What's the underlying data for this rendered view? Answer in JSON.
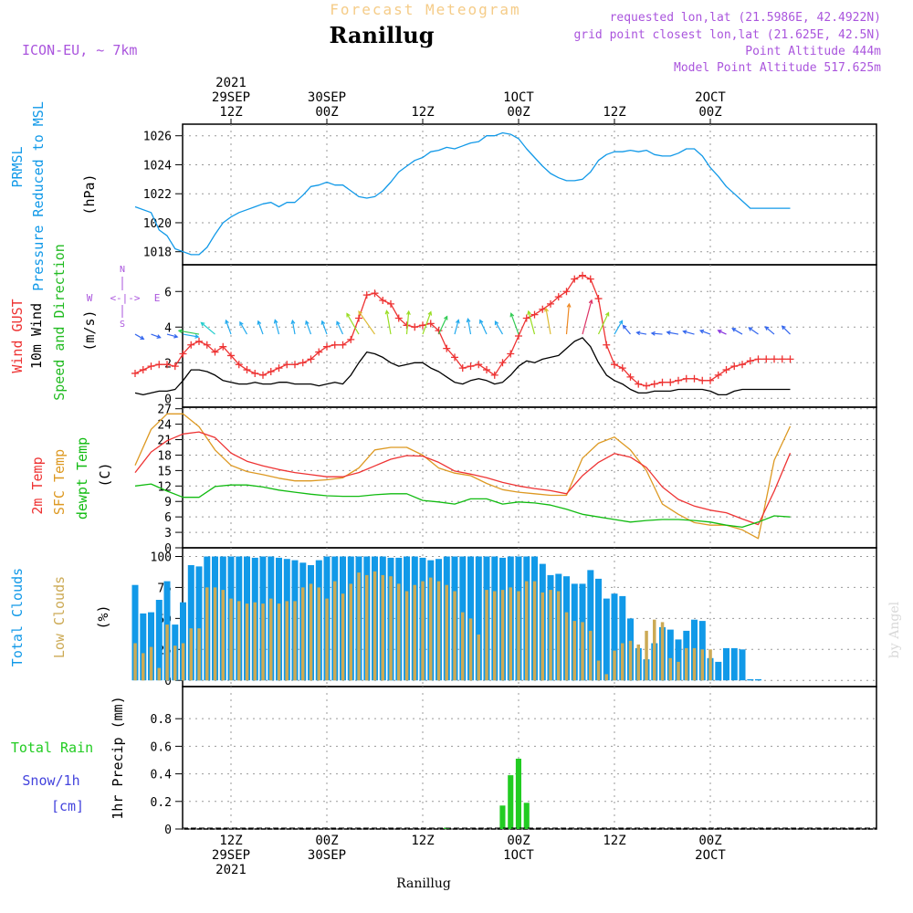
{
  "header": {
    "product": "Forecast Meteogram",
    "location": "Ranillug",
    "model": "ICON-EU, ~ 7km",
    "requested": "requested lon,lat (21.5986E, 42.4922N)",
    "grid_point": "grid point closest lon,lat (21.625E, 42.5N)",
    "point_altitude": "Point Altitude 444m",
    "model_altitude": "Model Point Altitude 517.625m",
    "credit": "by Angel",
    "footer_location": "Ranillug"
  },
  "compass": {
    "n": "N",
    "w": "W",
    "e": "E",
    "s": "S",
    "glyph": "<-|->"
  },
  "colors": {
    "pressure": "#1199e8",
    "gust": "#ee3333",
    "wind": "#000000",
    "direction": "#22bb22",
    "temp2m": "#ee3333",
    "sfc": "#dd9922",
    "dewpt": "#11bb11",
    "total_clouds": "#1199e8",
    "low_clouds": "#ccaa55",
    "rain": "#22cc22",
    "snow": "#4444dd",
    "purple": "#aa55dd"
  },
  "time_axis": {
    "top": [
      {
        "t": 12,
        "lines": [
          "2021",
          "29SEP",
          "12Z"
        ]
      },
      {
        "t": 24,
        "lines": [
          "30SEP",
          "00Z"
        ]
      },
      {
        "t": 36,
        "lines": [
          "12Z"
        ]
      },
      {
        "t": 48,
        "lines": [
          "1OCT",
          "00Z"
        ]
      },
      {
        "t": 60,
        "lines": [
          "12Z"
        ]
      },
      {
        "t": 72,
        "lines": [
          "2OCT",
          "00Z"
        ]
      }
    ],
    "bottom": [
      {
        "t": 12,
        "lines": [
          "12Z",
          "29SEP",
          "2021"
        ]
      },
      {
        "t": 24,
        "lines": [
          "00Z",
          "30SEP"
        ]
      },
      {
        "t": 36,
        "lines": [
          "12Z"
        ]
      },
      {
        "t": 48,
        "lines": [
          "00Z",
          "1OCT"
        ]
      },
      {
        "t": 60,
        "lines": [
          "12Z"
        ]
      },
      {
        "t": 72,
        "lines": [
          "00Z",
          "2OCT"
        ]
      }
    ]
  },
  "chart_data": [
    {
      "type": "line",
      "title": "PRMSL Pressure Reduced to MSL",
      "label_lines": [
        "PRMSL",
        "Pressure Reduced to MSL"
      ],
      "ylabel": "(hPa)",
      "ylim": [
        1017,
        1027
      ],
      "yticks": [
        1018,
        1020,
        1022,
        1024,
        1026
      ],
      "x_unit": "hours from 29SEP 00Z",
      "x": [
        0,
        2,
        3,
        4,
        5,
        6,
        7,
        8,
        9,
        10,
        11,
        12,
        13,
        14,
        15,
        16,
        17,
        18,
        19,
        20,
        21,
        22,
        23,
        24,
        25,
        26,
        27,
        28,
        29,
        30,
        31,
        32,
        33,
        34,
        35,
        36,
        37,
        38,
        39,
        40,
        41,
        42,
        43,
        44,
        45,
        46,
        47,
        48,
        49,
        50,
        51,
        52,
        53,
        54,
        55,
        56,
        57,
        58,
        59,
        60,
        61,
        62,
        63,
        64,
        65,
        66,
        67,
        68,
        69,
        70,
        71,
        72,
        73,
        74,
        75,
        76,
        77,
        78,
        79,
        80,
        81,
        82
      ],
      "series": [
        {
          "name": "PRMSL",
          "values": [
            1021.1,
            1020.7,
            1019.5,
            1019.1,
            1018.2,
            1018.0,
            1017.8,
            1017.8,
            1018.3,
            1019.2,
            1020.0,
            1020.4,
            1020.7,
            1020.9,
            1021.1,
            1021.3,
            1021.4,
            1021.1,
            1021.4,
            1021.4,
            1021.9,
            1022.5,
            1022.6,
            1022.8,
            1022.6,
            1022.6,
            1022.2,
            1021.8,
            1021.7,
            1021.8,
            1022.2,
            1022.8,
            1023.5,
            1023.9,
            1024.3,
            1024.5,
            1024.9,
            1025.0,
            1025.2,
            1025.1,
            1025.3,
            1025.5,
            1025.6,
            1026.0,
            1026.0,
            1026.2,
            1026.1,
            1025.8,
            1025.1,
            1024.5,
            1023.9,
            1023.4,
            1023.1,
            1022.9,
            1022.9,
            1023.0,
            1023.5,
            1024.3,
            1024.7,
            1024.9,
            1024.9,
            1025.0,
            1024.9,
            1025.0,
            1024.7,
            1024.6,
            1024.6,
            1024.8,
            1025.1,
            1025.1,
            1024.6,
            1023.8,
            1023.2,
            1022.5,
            1022.0,
            1021.5,
            1021.0,
            1021.0,
            1021.0,
            1021.0,
            1021.0,
            1021.0
          ]
        }
      ]
    },
    {
      "type": "line",
      "title": "Wind GUST, 10m Wind Speed and Direction",
      "label_lines": [
        "Wind GUST",
        "10m Wind",
        "Speed and Direction"
      ],
      "ylabel": "(m/s)",
      "ylim": [
        -0.3,
        7.5
      ],
      "yticks": [
        0,
        2,
        4,
        6
      ],
      "x": [
        0,
        1,
        2,
        3,
        4,
        5,
        6,
        7,
        8,
        9,
        10,
        11,
        12,
        13,
        14,
        15,
        16,
        17,
        18,
        19,
        20,
        21,
        22,
        23,
        24,
        25,
        26,
        27,
        28,
        29,
        30,
        31,
        32,
        33,
        34,
        35,
        36,
        37,
        38,
        39,
        40,
        41,
        42,
        43,
        44,
        45,
        46,
        47,
        48,
        49,
        50,
        51,
        52,
        53,
        54,
        55,
        56,
        57,
        58,
        59,
        60,
        61,
        62,
        63,
        64,
        65,
        66,
        67,
        68,
        69,
        70,
        71,
        72,
        73,
        74,
        75,
        76,
        77,
        78,
        79,
        80,
        81,
        82
      ],
      "series": [
        {
          "name": "Wind GUST",
          "values": [
            1.4,
            1.6,
            1.8,
            1.9,
            1.9,
            1.8,
            2.5,
            3.0,
            3.2,
            3.0,
            2.6,
            2.9,
            2.4,
            1.9,
            1.6,
            1.4,
            1.3,
            1.5,
            1.7,
            1.9,
            1.9,
            2.0,
            2.2,
            2.6,
            2.9,
            3.0,
            3.0,
            3.3,
            4.5,
            5.8,
            5.9,
            5.5,
            5.3,
            4.5,
            4.1,
            4.0,
            4.1,
            4.2,
            3.8,
            2.8,
            2.3,
            1.7,
            1.8,
            1.9,
            1.6,
            1.3,
            2.0,
            2.5,
            3.5,
            4.5,
            4.7,
            5.0,
            5.3,
            5.7,
            6.0,
            6.7,
            6.9,
            6.7,
            5.6,
            3.0,
            1.9,
            1.7,
            1.2,
            0.8,
            0.7,
            0.8,
            0.9,
            0.9,
            1.0,
            1.1,
            1.1,
            1.0,
            1.0,
            1.3,
            1.6,
            1.8,
            1.9,
            2.1,
            2.2,
            2.2,
            2.2,
            2.2,
            2.2
          ]
        },
        {
          "name": "10m Wind",
          "values": [
            0.3,
            0.2,
            0.3,
            0.4,
            0.4,
            0.5,
            1.0,
            1.6,
            1.6,
            1.5,
            1.3,
            1.0,
            0.9,
            0.8,
            0.8,
            0.9,
            0.8,
            0.8,
            0.9,
            0.9,
            0.8,
            0.8,
            0.8,
            0.7,
            0.8,
            0.9,
            0.8,
            1.3,
            2.0,
            2.6,
            2.5,
            2.3,
            2.0,
            1.8,
            1.9,
            2.0,
            2.0,
            1.7,
            1.5,
            1.2,
            0.9,
            0.8,
            1.0,
            1.1,
            1.0,
            0.8,
            0.9,
            1.3,
            1.8,
            2.1,
            2.0,
            2.2,
            2.3,
            2.4,
            2.8,
            3.2,
            3.4,
            2.9,
            2.0,
            1.3,
            1.0,
            0.8,
            0.5,
            0.3,
            0.3,
            0.4,
            0.4,
            0.4,
            0.5,
            0.5,
            0.5,
            0.5,
            0.4,
            0.2,
            0.2,
            0.4,
            0.5,
            0.5,
            0.5,
            0.5,
            0.5,
            0.5,
            0.5
          ]
        }
      ],
      "direction_arrows": {
        "x": [
          0,
          2,
          4,
          6,
          8,
          10,
          12,
          14,
          16,
          18,
          20,
          22,
          24,
          26,
          28,
          30,
          32,
          34,
          36,
          38,
          40,
          42,
          44,
          46,
          48,
          50,
          52,
          54,
          56,
          58,
          60,
          62,
          64,
          66,
          68,
          70,
          72,
          74,
          76,
          78,
          80,
          82
        ],
        "angle_deg": [
          60,
          70,
          75,
          80,
          260,
          230,
          200,
          210,
          200,
          195,
          190,
          200,
          200,
          205,
          210,
          215,
          190,
          175,
          160,
          155,
          165,
          190,
          205,
          210,
          200,
          195,
          190,
          175,
          165,
          155,
          150,
          220,
          260,
          265,
          260,
          255,
          250,
          245,
          240,
          235,
          230,
          225
        ],
        "color_by": "speed"
      }
    },
    {
      "type": "line",
      "title": "2m Temp, SFC Temp, dewpt Temp",
      "label_lines": [
        "2m Temp",
        "SFC Temp",
        "dewpt Temp"
      ],
      "ylabel": "(C)",
      "ylim": [
        0,
        27
      ],
      "yticks": [
        0,
        3,
        6,
        9,
        12,
        15,
        18,
        21,
        24,
        27
      ],
      "x": [
        0,
        2,
        4,
        6,
        8,
        10,
        12,
        14,
        16,
        18,
        20,
        22,
        24,
        26,
        28,
        30,
        32,
        34,
        36,
        38,
        40,
        42,
        44,
        46,
        48,
        50,
        52,
        54,
        56,
        58,
        60,
        62,
        64,
        66,
        68,
        70,
        72,
        74,
        76,
        78,
        80,
        82
      ],
      "series": [
        {
          "name": "2m Temp",
          "values": [
            14.6,
            18.6,
            20.8,
            22.1,
            22.5,
            21.4,
            18.4,
            16.8,
            15.9,
            15.2,
            14.6,
            14.2,
            13.8,
            13.8,
            14.6,
            15.9,
            17.2,
            17.9,
            17.8,
            16.6,
            14.9,
            14.3,
            13.6,
            12.7,
            12.0,
            11.5,
            11.1,
            10.5,
            14.0,
            16.6,
            18.3,
            17.6,
            15.6,
            11.8,
            9.4,
            8.1,
            7.3,
            6.8,
            5.6,
            4.5,
            11.0,
            18.4
          ]
        },
        {
          "name": "SFC Temp",
          "values": [
            16.0,
            23.0,
            26.0,
            26.0,
            23.5,
            19.0,
            16.0,
            14.8,
            14.2,
            13.5,
            13.0,
            13.0,
            13.2,
            13.6,
            15.5,
            19.0,
            19.5,
            19.5,
            18.0,
            15.5,
            14.5,
            14.0,
            12.5,
            11.3,
            10.8,
            10.5,
            10.2,
            10.2,
            17.4,
            20.3,
            21.5,
            19.0,
            15.0,
            8.5,
            6.5,
            4.9,
            4.4,
            4.4,
            3.5,
            1.8,
            17.0,
            23.6
          ]
        },
        {
          "name": "dewpt Temp",
          "values": [
            12.0,
            12.4,
            11.0,
            9.8,
            9.8,
            11.9,
            12.2,
            12.2,
            11.8,
            11.2,
            10.8,
            10.4,
            10.1,
            10.0,
            10.0,
            10.3,
            10.5,
            10.5,
            9.2,
            8.9,
            8.5,
            9.5,
            9.5,
            8.5,
            8.9,
            8.7,
            8.3,
            7.5,
            6.5,
            6.0,
            5.5,
            5.0,
            5.3,
            5.5,
            5.5,
            5.3,
            5.0,
            4.4,
            4.0,
            5.0,
            6.2,
            6.0
          ]
        }
      ]
    },
    {
      "type": "bar",
      "title": "Total Clouds, Low Clouds",
      "label_lines": [
        "Total Clouds",
        "Low Clouds"
      ],
      "ylabel": "(%)",
      "ylim": [
        0,
        106
      ],
      "yticks": [
        0,
        25,
        50,
        75,
        100
      ],
      "x": [
        0,
        1,
        2,
        3,
        4,
        5,
        6,
        7,
        8,
        9,
        10,
        11,
        12,
        13,
        14,
        15,
        16,
        17,
        18,
        19,
        20,
        21,
        22,
        23,
        24,
        25,
        26,
        27,
        28,
        29,
        30,
        31,
        32,
        33,
        34,
        35,
        36,
        37,
        38,
        39,
        40,
        41,
        42,
        43,
        44,
        45,
        46,
        47,
        48,
        49,
        50,
        51,
        52,
        53,
        54,
        55,
        56,
        57,
        58,
        59,
        60,
        61,
        62,
        63,
        64,
        65,
        66,
        67,
        68,
        69,
        70,
        71,
        72,
        73,
        74,
        75,
        76,
        77,
        78
      ],
      "series": [
        {
          "name": "Total Clouds",
          "values": [
            77,
            54,
            55,
            65,
            80,
            45,
            63,
            93,
            92,
            100,
            100,
            100,
            100,
            100,
            100,
            99,
            100,
            100,
            99,
            98,
            97,
            95,
            93,
            97,
            100,
            100,
            100,
            100,
            100,
            100,
            100,
            100,
            99,
            99,
            100,
            100,
            99,
            97,
            98,
            100,
            100,
            100,
            100,
            100,
            100,
            100,
            99,
            100,
            100,
            100,
            100,
            94,
            85,
            86,
            84,
            78,
            78,
            89,
            82,
            66,
            70,
            68,
            50,
            26,
            17,
            30,
            43,
            41,
            33,
            40,
            49,
            48,
            18,
            15,
            26,
            26,
            25,
            1,
            1
          ]
        },
        {
          "name": "Low Clouds",
          "values": [
            30,
            22,
            27,
            10,
            45,
            28,
            30,
            42,
            42,
            75,
            75,
            73,
            66,
            64,
            62,
            63,
            62,
            66,
            62,
            64,
            64,
            75,
            78,
            75,
            66,
            80,
            70,
            78,
            87,
            85,
            88,
            85,
            84,
            78,
            72,
            77,
            80,
            83,
            80,
            77,
            72,
            55,
            50,
            37,
            73,
            72,
            73,
            75,
            72,
            80,
            80,
            71,
            73,
            72,
            55,
            48,
            47,
            40,
            16,
            5,
            24,
            30,
            32,
            29,
            40,
            49,
            47,
            18,
            15,
            26,
            26,
            25,
            25,
            0,
            0,
            0,
            0,
            0,
            0
          ]
        }
      ]
    },
    {
      "type": "bar",
      "title": "1hr Precip (mm)",
      "label_lines": [
        "Total Rain",
        "Snow/1h",
        "[cm]"
      ],
      "ylabel": "1hr Precip (mm)",
      "ylim": [
        0,
        0.98
      ],
      "yticks": [
        0,
        0.2,
        0.4,
        0.6,
        0.8
      ],
      "x": [
        39,
        46,
        47,
        48,
        49
      ],
      "series": [
        {
          "name": "Total Rain",
          "values": [
            0.01,
            0.17,
            0.39,
            0.51,
            0.19
          ]
        }
      ]
    }
  ]
}
